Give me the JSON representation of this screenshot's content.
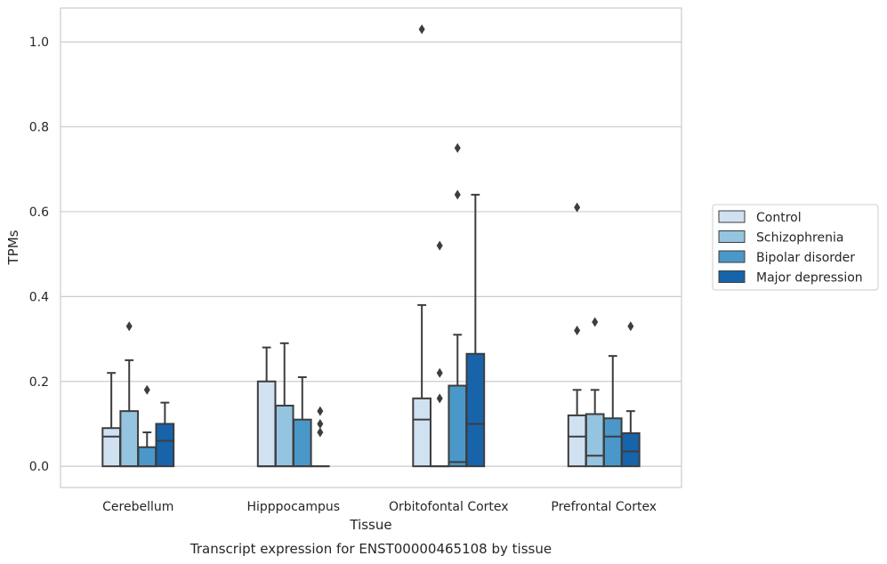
{
  "chart_data": {
    "type": "box",
    "caption": "Transcript expression for ENST00000465108 by tissue",
    "xlabel": "Tissue",
    "ylabel": "TPMs",
    "ylim": [
      -0.05,
      1.08
    ],
    "yticks": [
      "0.0",
      "0.2",
      "0.4",
      "0.6",
      "0.8",
      "1.0"
    ],
    "grid": "horizontal",
    "legend_position": "right",
    "categories": [
      "Cerebellum",
      "Hipppocampus",
      "Orbitofontal Cortex",
      "Prefrontal Cortex"
    ],
    "series": [
      {
        "name": "Control",
        "color": "#d0e1f2",
        "boxes": [
          {
            "q1": 0.0,
            "median": 0.07,
            "q3": 0.09,
            "whisker_low": 0.0,
            "whisker_high": 0.22,
            "outliers": []
          },
          {
            "q1": 0.0,
            "median": 0.0,
            "q3": 0.2,
            "whisker_low": 0.0,
            "whisker_high": 0.28,
            "outliers": []
          },
          {
            "q1": 0.0,
            "median": 0.11,
            "q3": 0.16,
            "whisker_low": 0.0,
            "whisker_high": 0.38,
            "outliers": [
              1.03
            ]
          },
          {
            "q1": 0.0,
            "median": 0.07,
            "q3": 0.12,
            "whisker_low": 0.0,
            "whisker_high": 0.18,
            "outliers": [
              0.32,
              0.61
            ]
          }
        ]
      },
      {
        "name": "Schizophrenia",
        "color": "#94c4df",
        "boxes": [
          {
            "q1": 0.0,
            "median": 0.0,
            "q3": 0.13,
            "whisker_low": 0.0,
            "whisker_high": 0.25,
            "outliers": [
              0.33
            ]
          },
          {
            "q1": 0.0,
            "median": 0.0,
            "q3": 0.143,
            "whisker_low": 0.0,
            "whisker_high": 0.29,
            "outliers": []
          },
          {
            "q1": 0.0,
            "median": 0.0,
            "q3": 0.0,
            "whisker_low": 0.0,
            "whisker_high": 0.0,
            "outliers": [
              0.16,
              0.22,
              0.52
            ]
          },
          {
            "q1": 0.0,
            "median": 0.025,
            "q3": 0.123,
            "whisker_low": 0.0,
            "whisker_high": 0.18,
            "outliers": [
              0.34
            ]
          }
        ]
      },
      {
        "name": "Bipolar disorder",
        "color": "#4a98c9",
        "boxes": [
          {
            "q1": 0.0,
            "median": 0.0,
            "q3": 0.045,
            "whisker_low": 0.0,
            "whisker_high": 0.08,
            "outliers": [
              0.18
            ]
          },
          {
            "q1": 0.0,
            "median": 0.0,
            "q3": 0.11,
            "whisker_low": 0.0,
            "whisker_high": 0.21,
            "outliers": []
          },
          {
            "q1": 0.0,
            "median": 0.01,
            "q3": 0.19,
            "whisker_low": 0.0,
            "whisker_high": 0.31,
            "outliers": [
              0.64,
              0.75
            ]
          },
          {
            "q1": 0.0,
            "median": 0.07,
            "q3": 0.113,
            "whisker_low": 0.0,
            "whisker_high": 0.26,
            "outliers": []
          }
        ]
      },
      {
        "name": "Major depression",
        "color": "#1764ab",
        "boxes": [
          {
            "q1": 0.0,
            "median": 0.06,
            "q3": 0.1,
            "whisker_low": 0.0,
            "whisker_high": 0.15,
            "outliers": []
          },
          {
            "q1": 0.0,
            "median": 0.0,
            "q3": 0.0,
            "whisker_low": 0.0,
            "whisker_high": 0.0,
            "outliers": [
              0.08,
              0.1,
              0.13
            ]
          },
          {
            "q1": 0.0,
            "median": 0.1,
            "q3": 0.265,
            "whisker_low": 0.0,
            "whisker_high": 0.64,
            "outliers": []
          },
          {
            "q1": 0.0,
            "median": 0.035,
            "q3": 0.078,
            "whisker_low": 0.0,
            "whisker_high": 0.13,
            "outliers": [
              0.33
            ]
          }
        ]
      }
    ],
    "colors": {
      "grid": "#cccccc",
      "frame": "#cccccc",
      "box_edge": "#3d3d3d"
    }
  }
}
